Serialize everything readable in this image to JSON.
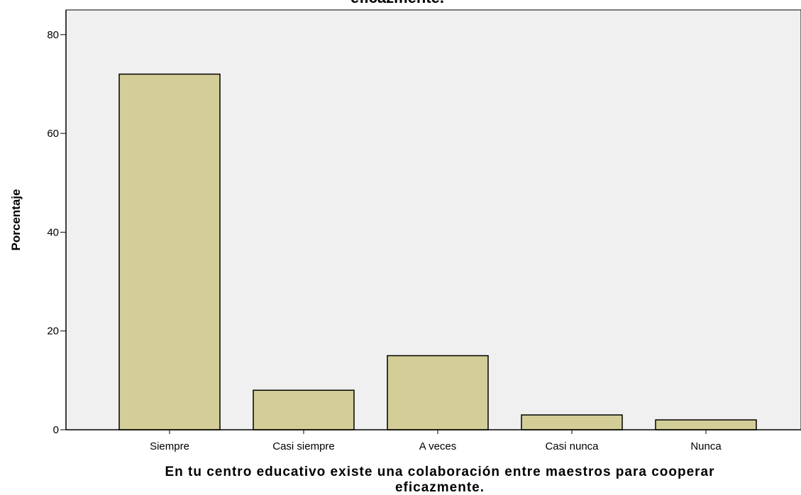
{
  "chart_data": {
    "type": "bar",
    "title": "eficazmente.",
    "xlabel": "En tu centro educativo existe una colaboración entre maestros para cooperar eficazmente.",
    "xlabel_lines": [
      "En tu centro educativo existe una colaboración entre maestros para cooperar",
      "eficazmente."
    ],
    "ylabel": "Porcentaje",
    "categories": [
      "Siempre",
      "Casi siempre",
      "A veces",
      "Casi nunca",
      "Nunca"
    ],
    "values": [
      72,
      8,
      15,
      3,
      2
    ],
    "ylim": [
      0,
      85
    ],
    "yticks": [
      0,
      20,
      40,
      60,
      80
    ],
    "grid": false,
    "colors": {
      "bar_fill": "#d3ce97",
      "bar_stroke": "#000000",
      "plot_background": "#f0f0f0",
      "axis": "#000000"
    }
  }
}
